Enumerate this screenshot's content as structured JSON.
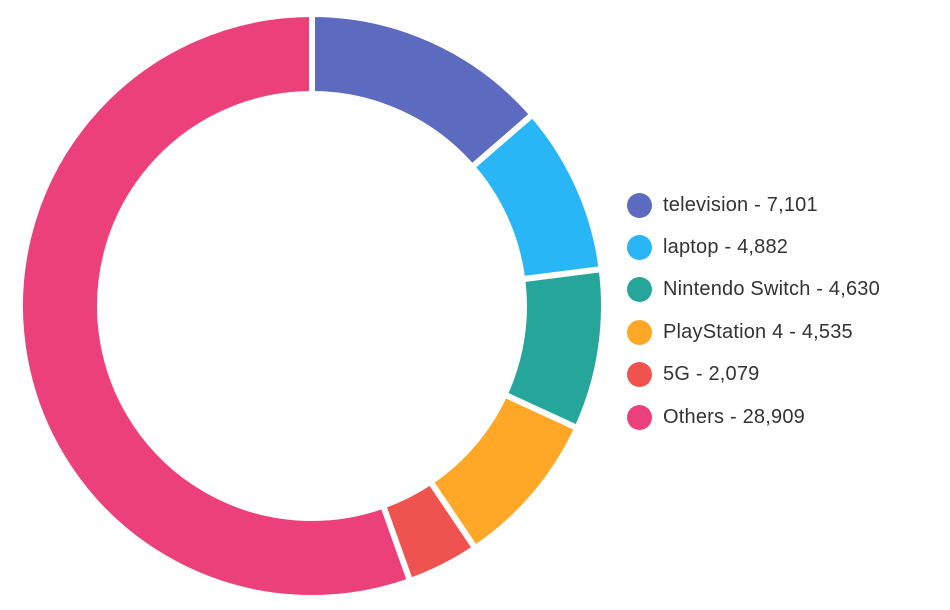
{
  "chart_data": {
    "type": "pie",
    "variant": "donut",
    "categories": [
      "television",
      "laptop",
      "Nintendo Switch",
      "PlayStation 4",
      "5G",
      "Others"
    ],
    "values": [
      7101,
      4882,
      4630,
      4535,
      2079,
      28909
    ],
    "colors": [
      "#5C6BC0",
      "#29B6F6",
      "#26A69A",
      "#FFA726",
      "#EF5350",
      "#EC407A"
    ],
    "legend": {
      "position": "right",
      "entries": [
        "television - 7,101",
        "laptop - 4,882",
        "Nintendo Switch - 4,630",
        "PlayStation 4 - 4,535",
        "5G - 2,079",
        "Others - 28,909"
      ]
    },
    "start_angle_deg": 0,
    "direction": "clockwise"
  }
}
